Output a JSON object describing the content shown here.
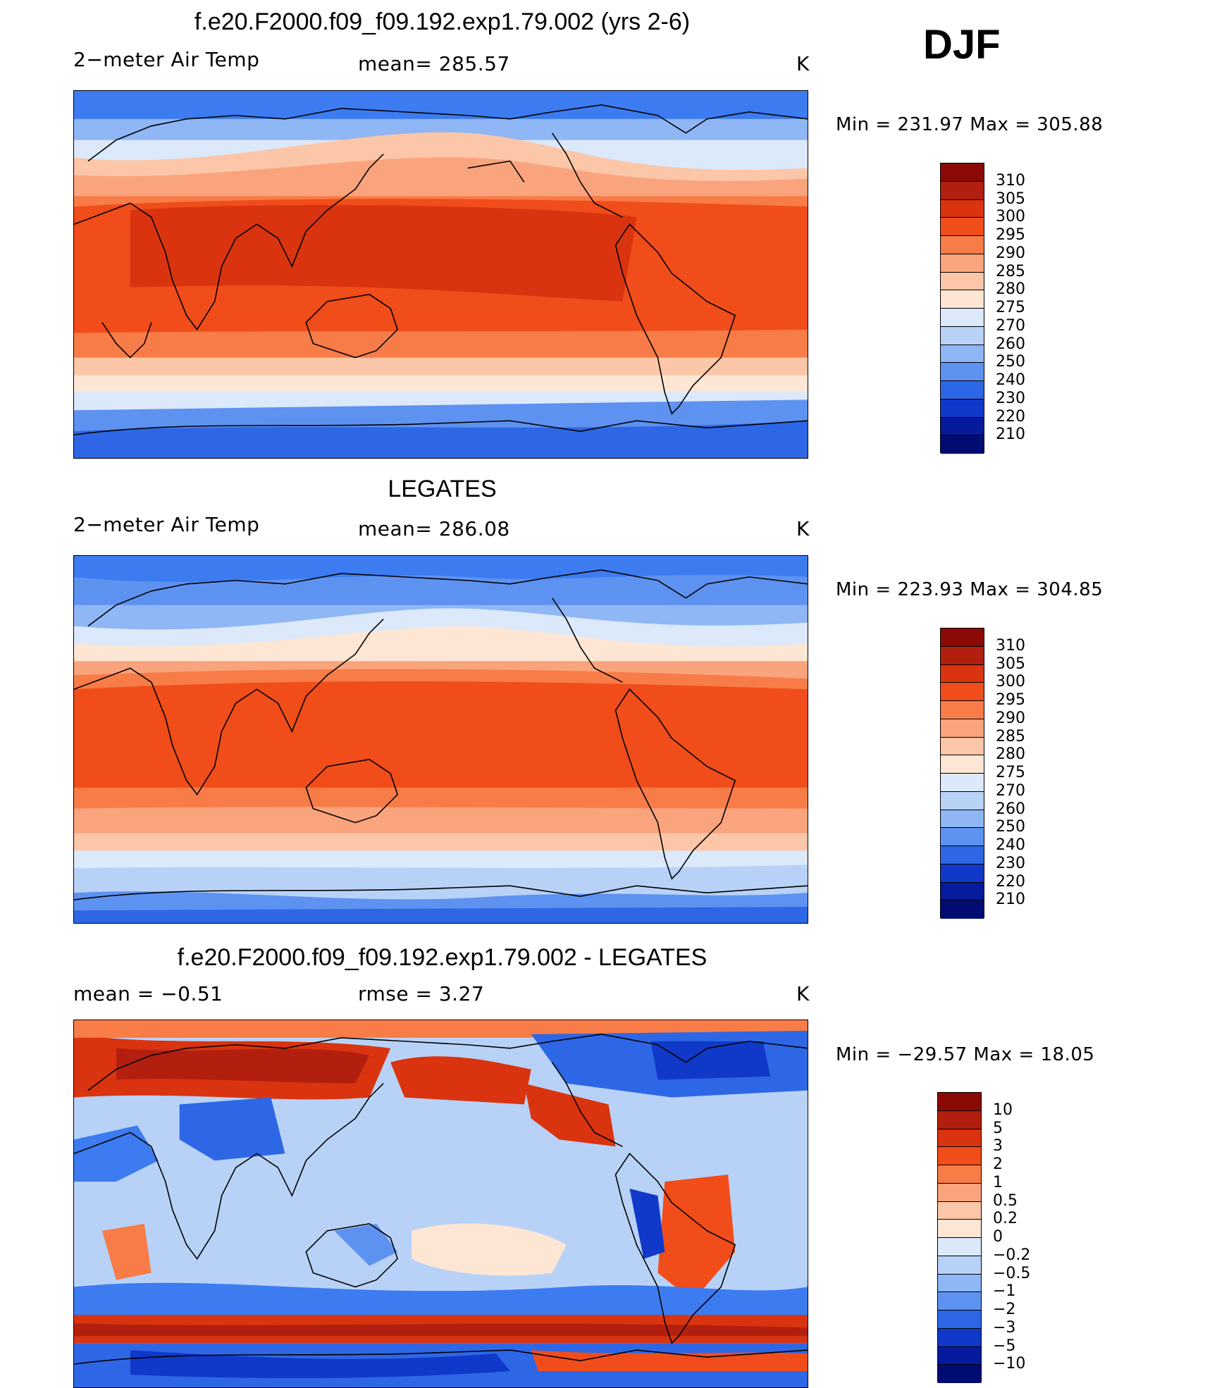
{
  "season": "DJF",
  "units": "K",
  "panels": [
    {
      "title": "f.e20.F2000.f09_f09.192.exp1.79.002 (yrs 2-6)",
      "left_label": "2−meter Air Temp",
      "center_label": "mean=  285.57",
      "units": "K",
      "range": "Min  =  231.97  Max  =  305.88",
      "kind": "abs"
    },
    {
      "title": "LEGATES",
      "left_label": "2−meter Air Temp",
      "center_label": "mean=  286.08",
      "units": "K",
      "range": "Min  =  223.93  Max  =  304.85",
      "kind": "abs2"
    },
    {
      "title": "f.e20.F2000.f09_f09.192.exp1.79.002 - LEGATES",
      "left_label": "mean  =    −0.51",
      "center_label": "rmse  =      3.27",
      "units": "K",
      "range": "Min  =  −29.57  Max  =    18.05",
      "kind": "diff"
    }
  ],
  "colorbars": {
    "abs": {
      "labels": [
        "310",
        "305",
        "300",
        "295",
        "290",
        "285",
        "280",
        "275",
        "270",
        "260",
        "250",
        "240",
        "230",
        "220",
        "210"
      ],
      "colors": [
        "#8b0a05",
        "#b31f0f",
        "#d9340f",
        "#f04d1a",
        "#f77c47",
        "#f9a47d",
        "#fcc6a8",
        "#fde6d4",
        "#dbe9fb",
        "#b8d2f7",
        "#8fb6f5",
        "#5e92f0",
        "#2e67e6",
        "#1039c9",
        "#061a9e",
        "#000c73"
      ]
    },
    "diff": {
      "labels": [
        "10",
        "5",
        "3",
        "2",
        "1",
        "0.5",
        "0.2",
        "0",
        "−0.2",
        "−0.5",
        "−1",
        "−2",
        "−3",
        "−5",
        "−10"
      ],
      "colors": [
        "#8b0a05",
        "#b31f0f",
        "#d9340f",
        "#f04d1a",
        "#f77c47",
        "#f9a47d",
        "#fcc6a8",
        "#fde6d4",
        "#dbe9fb",
        "#b8d2f7",
        "#8fb6f5",
        "#5e92f0",
        "#2e67e6",
        "#1039c9",
        "#061a9e",
        "#000c73"
      ]
    }
  },
  "chart_data": [
    {
      "type": "heatmap",
      "title": "f.e20.F2000.f09_f09.192.exp1.79.002 (yrs 2-6)",
      "variable": "2-meter Air Temp",
      "units": "K",
      "mean": 285.57,
      "min": 231.97,
      "max": 305.88,
      "contour_levels": [
        210,
        220,
        230,
        240,
        250,
        260,
        270,
        275,
        280,
        285,
        290,
        295,
        300,
        305,
        310
      ]
    },
    {
      "type": "heatmap",
      "title": "LEGATES",
      "variable": "2-meter Air Temp",
      "units": "K",
      "mean": 286.08,
      "min": 223.93,
      "max": 304.85,
      "contour_levels": [
        210,
        220,
        230,
        240,
        250,
        260,
        270,
        275,
        280,
        285,
        290,
        295,
        300,
        305,
        310
      ]
    },
    {
      "type": "heatmap",
      "title": "f.e20.F2000.f09_f09.192.exp1.79.002 - LEGATES",
      "units": "K",
      "mean": -0.51,
      "rmse": 3.27,
      "min": -29.57,
      "max": 18.05,
      "contour_levels": [
        -10,
        -5,
        -3,
        -2,
        -1,
        -0.5,
        -0.2,
        0,
        0.2,
        0.5,
        1,
        2,
        3,
        5,
        10
      ]
    }
  ]
}
